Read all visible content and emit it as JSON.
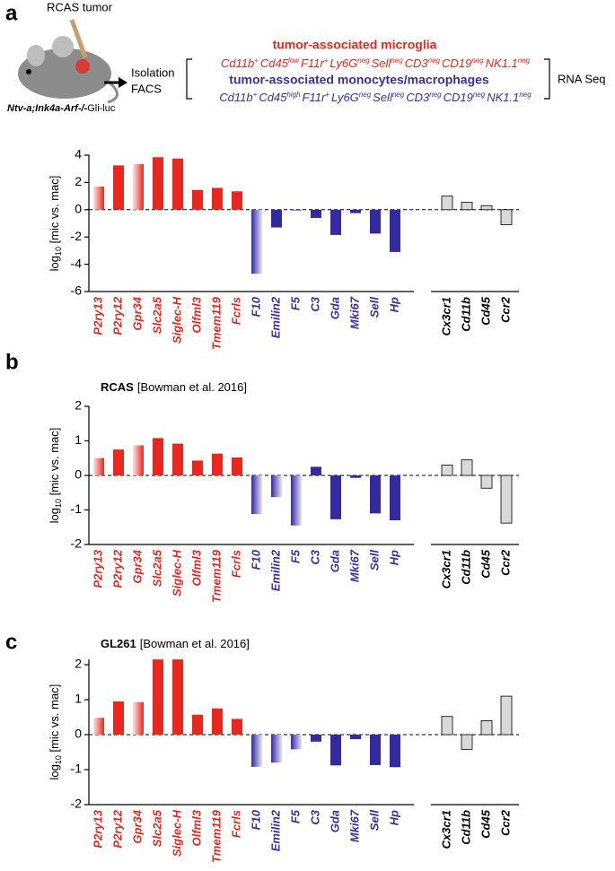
{
  "header": {
    "panel_label": "a",
    "tumor_label": "RCAS tumor",
    "mouse_label": [
      "Ntv-a;Ink4a-Arf-/-",
      "Gli-luc"
    ],
    "isolation": [
      "Isolation",
      "FACS"
    ],
    "rna_seq": "RNA Seq",
    "microglia": {
      "title": "tumor-associated microglia",
      "markers": [
        {
          "name": "Cd11b",
          "sup": "+"
        },
        {
          "name": "Cd45",
          "sup": "low"
        },
        {
          "name": "F11r",
          "sup": "+"
        },
        {
          "name": "Ly6G",
          "sup": "neg"
        },
        {
          "name": "Sell",
          "sup": "neg"
        },
        {
          "name": "CD3",
          "sup": "neg"
        },
        {
          "name": "CD19",
          "sup": "neg"
        },
        {
          "name": "NK1.1",
          "sup": "neg"
        }
      ]
    },
    "macrophages": {
      "title": "tumor-associated monocytes/macrophages",
      "markers": [
        {
          "name": "Cd11b",
          "sup": "+"
        },
        {
          "name": "Cd45",
          "sup": "high"
        },
        {
          "name": "F11r",
          "sup": "+"
        },
        {
          "name": "Ly6G",
          "sup": "neg"
        },
        {
          "name": "Sell",
          "sup": "neg"
        },
        {
          "name": "CD3",
          "sup": "neg"
        },
        {
          "name": "CD19",
          "sup": "neg"
        },
        {
          "name": "NK1.1",
          "sup": "neg"
        }
      ]
    }
  },
  "chart_data": [
    {
      "type": "bar",
      "ylabel": [
        "log",
        "10",
        " [mic vs. mac]"
      ],
      "categories": [
        "P2ry13",
        "P2ry12",
        "Gpr34",
        "Slc2a5",
        "Siglec-H",
        "Olfml3",
        "Tmem119",
        "Fcrls",
        "F10",
        "Emilin2",
        "F5",
        "C3",
        "Gda",
        "Mki67",
        "Sell",
        "Hp",
        "Cx3cr1",
        "Cd11b",
        "Cd45",
        "Ccr2"
      ],
      "values": [
        1.7,
        3.25,
        3.35,
        3.85,
        3.75,
        1.45,
        1.6,
        1.35,
        -4.7,
        -1.3,
        -0.05,
        -0.6,
        -1.85,
        -0.25,
        -1.75,
        -3.1,
        1.0,
        0.55,
        0.3,
        -1.1
      ],
      "colors": [
        "#e8281e",
        "#e8281e",
        "#e8281e",
        "#e8281e",
        "#e8281e",
        "#e8281e",
        "#e8281e",
        "#e8281e",
        "#322a9e",
        "#322a9e",
        "#322a9e",
        "#322a9e",
        "#322a9e",
        "#322a9e",
        "#322a9e",
        "#322a9e",
        "#d9d9d9",
        "#d9d9d9",
        "#d9d9d9",
        "#d9d9d9"
      ],
      "gradient": [
        true,
        false,
        true,
        false,
        false,
        false,
        false,
        false,
        true,
        false,
        false,
        false,
        false,
        false,
        false,
        false,
        false,
        false,
        false,
        false
      ],
      "label_colors": [
        "#e8281e",
        "#e8281e",
        "#e8281e",
        "#e8281e",
        "#e8281e",
        "#e8281e",
        "#e8281e",
        "#e8281e",
        "#3b2ea0",
        "#3b2ea0",
        "#3b2ea0",
        "#3b2ea0",
        "#3b2ea0",
        "#3b2ea0",
        "#3b2ea0",
        "#3b2ea0",
        "#000000",
        "#000000",
        "#000000",
        "#000000"
      ],
      "ylim": [
        -6,
        4
      ],
      "yticks": [
        -6,
        -4,
        -2,
        0,
        2,
        4
      ]
    },
    {
      "type": "bar",
      "panel_label": "b",
      "title_bold": "RCAS",
      "title": "[Bowman et al. 2016]",
      "ylabel": [
        "log",
        "10",
        " [mic vs. mac]"
      ],
      "categories": [
        "P2ry13",
        "P2ry12",
        "Gpr34",
        "Slc2a5",
        "Siglec-H",
        "Olfml3",
        "Tmem119",
        "Fcrls",
        "F10",
        "Emilin2",
        "F5",
        "C3",
        "Gda",
        "Mki67",
        "Sell",
        "Hp",
        "Cx3cr1",
        "Cd11b",
        "Cd45",
        "Ccr2"
      ],
      "values": [
        0.5,
        0.75,
        0.87,
        1.08,
        0.92,
        0.43,
        0.63,
        0.52,
        -1.12,
        -0.63,
        -1.45,
        0.25,
        -1.27,
        -0.07,
        -1.1,
        -1.3,
        0.3,
        0.45,
        -0.37,
        -1.38
      ],
      "colors": [
        "#e8281e",
        "#e8281e",
        "#e8281e",
        "#e8281e",
        "#e8281e",
        "#e8281e",
        "#e8281e",
        "#e8281e",
        "#322a9e",
        "#322a9e",
        "#322a9e",
        "#322a9e",
        "#322a9e",
        "#322a9e",
        "#322a9e",
        "#322a9e",
        "#d9d9d9",
        "#d9d9d9",
        "#d9d9d9",
        "#d9d9d9"
      ],
      "gradient": [
        true,
        false,
        true,
        false,
        false,
        false,
        false,
        false,
        true,
        true,
        true,
        false,
        false,
        false,
        false,
        false,
        false,
        false,
        false,
        false
      ],
      "label_colors": [
        "#e8281e",
        "#e8281e",
        "#e8281e",
        "#e8281e",
        "#e8281e",
        "#e8281e",
        "#e8281e",
        "#e8281e",
        "#3b2ea0",
        "#3b2ea0",
        "#3b2ea0",
        "#3b2ea0",
        "#3b2ea0",
        "#3b2ea0",
        "#3b2ea0",
        "#3b2ea0",
        "#000000",
        "#000000",
        "#000000",
        "#000000"
      ],
      "ylim": [
        -2,
        2
      ],
      "yticks": [
        -2,
        -1,
        0,
        1,
        2
      ]
    },
    {
      "type": "bar",
      "panel_label": "c",
      "title_bold": "GL261",
      "title": "[Bowman et al. 2016]",
      "ylabel": [
        "log",
        "10",
        " [mic vs. mac]"
      ],
      "categories": [
        "P2ry13",
        "P2ry12",
        "Gpr34",
        "Slc2a5",
        "Siglec-H",
        "Olfml3",
        "Tmem119",
        "Fcrls",
        "F10",
        "Emilin2",
        "F5",
        "C3",
        "Gda",
        "Mki67",
        "Sell",
        "Hp",
        "Cx3cr1",
        "Cd11b",
        "Cd45",
        "Ccr2"
      ],
      "values": [
        0.48,
        0.95,
        0.93,
        2.15,
        2.15,
        0.57,
        0.75,
        0.45,
        -0.92,
        -0.8,
        -0.42,
        -0.2,
        -0.88,
        -0.13,
        -0.87,
        -0.93,
        0.52,
        -0.42,
        0.4,
        1.1
      ],
      "colors": [
        "#e8281e",
        "#e8281e",
        "#e8281e",
        "#e8281e",
        "#e8281e",
        "#e8281e",
        "#e8281e",
        "#e8281e",
        "#322a9e",
        "#322a9e",
        "#322a9e",
        "#322a9e",
        "#322a9e",
        "#322a9e",
        "#322a9e",
        "#322a9e",
        "#d9d9d9",
        "#d9d9d9",
        "#d9d9d9",
        "#d9d9d9"
      ],
      "gradient": [
        true,
        false,
        true,
        false,
        false,
        false,
        false,
        false,
        true,
        true,
        true,
        false,
        false,
        false,
        false,
        false,
        false,
        false,
        false,
        false
      ],
      "label_colors": [
        "#e8281e",
        "#e8281e",
        "#e8281e",
        "#e8281e",
        "#e8281e",
        "#e8281e",
        "#e8281e",
        "#e8281e",
        "#3b2ea0",
        "#3b2ea0",
        "#3b2ea0",
        "#3b2ea0",
        "#3b2ea0",
        "#3b2ea0",
        "#3b2ea0",
        "#3b2ea0",
        "#000000",
        "#000000",
        "#000000",
        "#000000"
      ],
      "ylim": [
        -2,
        2.15
      ],
      "yticks": [
        -2,
        -1,
        0,
        1,
        2
      ]
    }
  ]
}
